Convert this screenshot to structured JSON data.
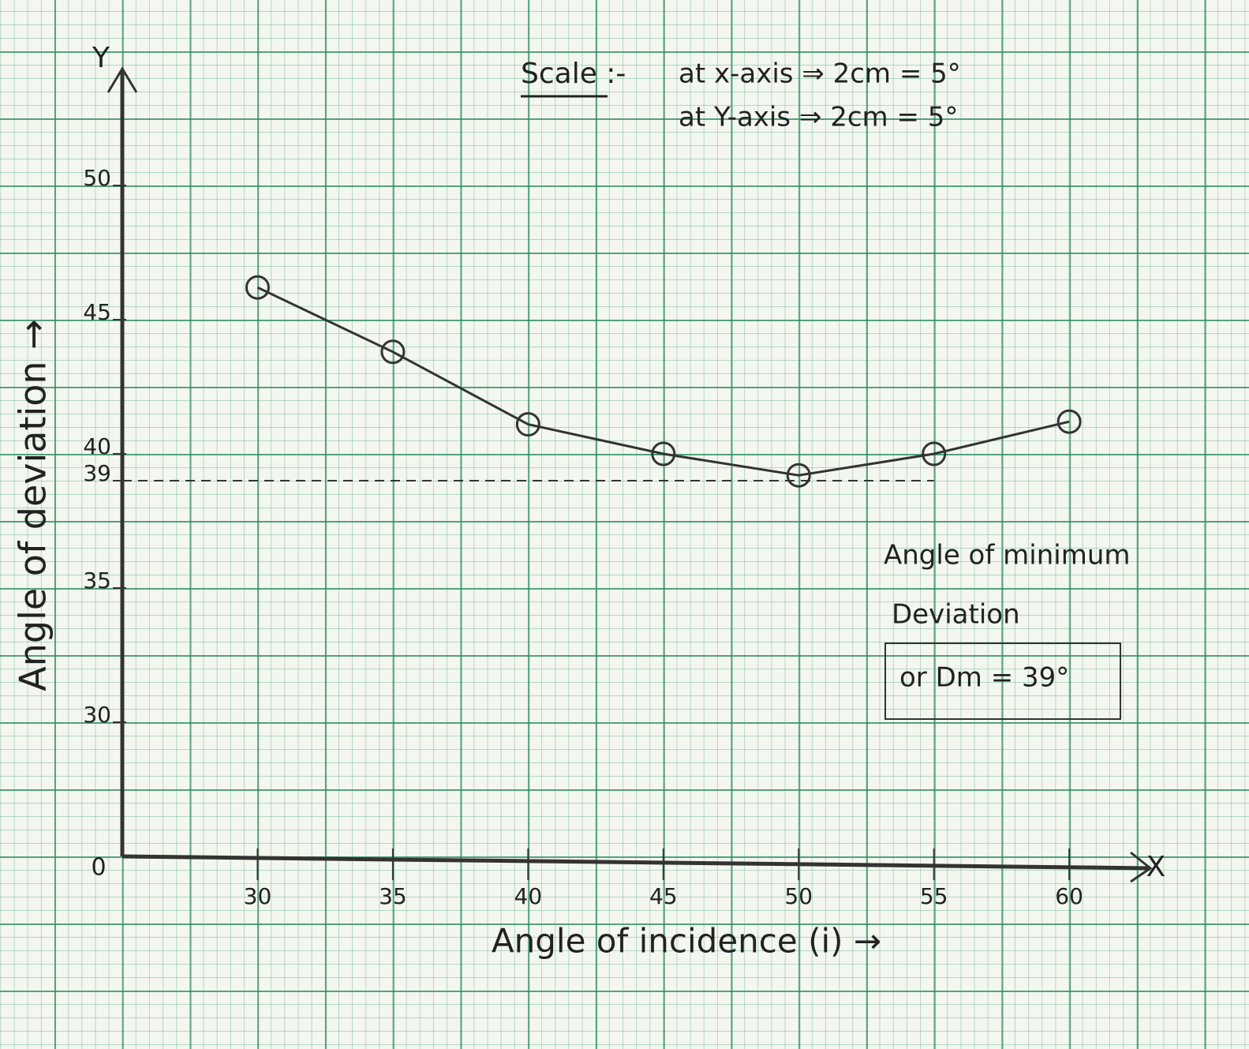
{
  "chart_data": {
    "type": "line",
    "x_label": "Angle of incidence (i) →",
    "y_label": "Angle of deviation →",
    "x_axis_letter": "X",
    "y_axis_letter": "Y",
    "origin_label": "0",
    "x": [
      30,
      35,
      40,
      45,
      50,
      55,
      60
    ],
    "series": [
      {
        "color": "#333333",
        "values": [
          46.2,
          43.8,
          41.1,
          40,
          39.2,
          40,
          41.2
        ]
      }
    ],
    "xlim": [
      25,
      63
    ],
    "ylim": [
      25,
      54
    ],
    "xticks": [
      30,
      35,
      40,
      45,
      50,
      55,
      60
    ],
    "yticks": [
      30,
      35,
      39,
      40,
      45,
      50
    ],
    "guide_tick": 2,
    "scale_title": "Scale :-",
    "scale_lines": [
      "at x-axis ⇒ 2cm = 5°",
      "at Y-axis ⇒ 2cm = 5°"
    ],
    "annotation_lines": [
      "Angle of minimum",
      "Deviation",
      "or Dm = 39°"
    ]
  }
}
